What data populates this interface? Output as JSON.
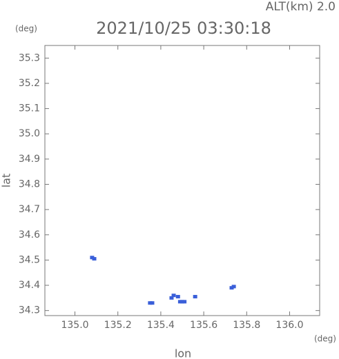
{
  "chart_data": {
    "type": "scatter",
    "title": "2021/10/25 03:30:18",
    "altitude_label": "ALT(km) 2.0",
    "y_unit": "(deg)",
    "x_unit": "(deg)",
    "ylabel": "lat",
    "xlabel": "lon",
    "color": "#3a5fd9",
    "x": [
      135.08,
      135.09,
      135.35,
      135.36,
      135.45,
      135.46,
      135.48,
      135.49,
      135.5,
      135.51,
      135.56,
      135.73,
      135.74
    ],
    "values": [
      34.51,
      34.505,
      34.33,
      34.33,
      34.35,
      34.36,
      34.355,
      34.335,
      34.335,
      34.335,
      34.355,
      34.39,
      34.395
    ],
    "xlim": [
      134.86,
      136.14
    ],
    "ylim": [
      34.28,
      35.35
    ],
    "xticks": [
      {
        "value": 135.0,
        "label": "135.0"
      },
      135.2,
      135.4,
      135.6,
      135.8,
      {
        "value": 136.0,
        "label": "136.0"
      }
    ],
    "yticks": [
      34.3,
      34.4,
      34.5,
      34.6,
      34.7,
      34.8,
      34.9,
      {
        "value": 35.0,
        "label": "35.0"
      },
      35.1,
      35.2,
      35.3
    ]
  }
}
